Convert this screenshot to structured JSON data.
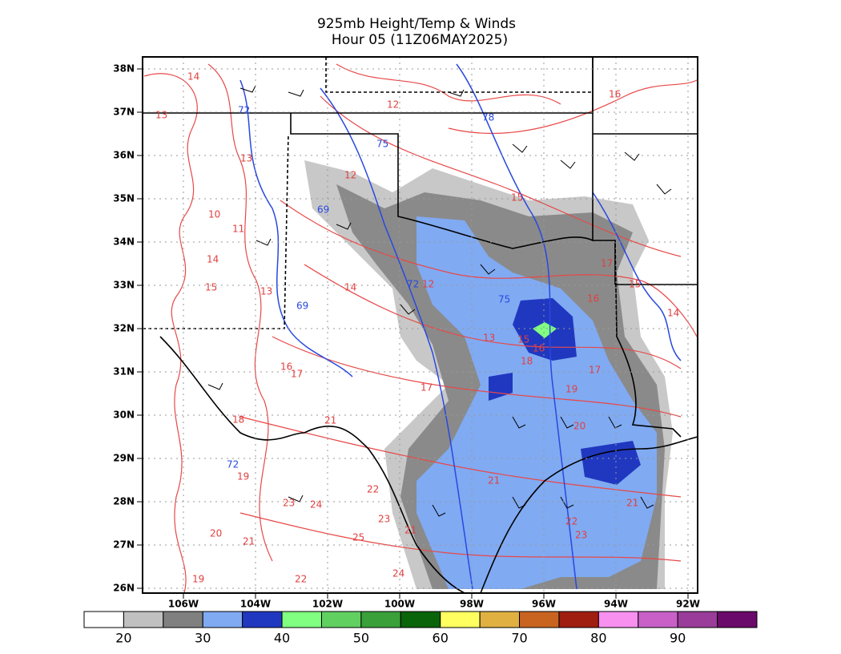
{
  "title": "925mb Height/Temp & Winds",
  "subtitle": "Hour 05 (11Z06MAY2025)",
  "map": {
    "lat_labels": [
      "26N",
      "27N",
      "28N",
      "29N",
      "30N",
      "31N",
      "32N",
      "33N",
      "34N",
      "35N",
      "36N",
      "37N",
      "38N"
    ],
    "lon_labels": [
      "106W",
      "104W",
      "102W",
      "100W",
      "98W",
      "96W",
      "94W",
      "92W"
    ],
    "contour_labels": [
      "14",
      "12",
      "16",
      "13",
      "72",
      "78",
      "75",
      "13",
      "12",
      "10",
      "11",
      "69",
      "15",
      "14",
      "15",
      "13",
      "14",
      "12",
      "72",
      "69",
      "75",
      "16",
      "17",
      "15",
      "14",
      "13",
      "15",
      "16",
      "18",
      "17",
      "19",
      "20",
      "17",
      "16",
      "17",
      "18",
      "21",
      "72",
      "19",
      "21",
      "21",
      "22",
      "23",
      "23",
      "24",
      "22",
      "23",
      "21",
      "25",
      "21",
      "20",
      "22",
      "19",
      "24"
    ]
  },
  "colorbar": {
    "colors": [
      "#ffffff",
      "#c0c0c0",
      "#808080",
      "#80aaf2",
      "#2038c0",
      "#80ff80",
      "#60d060",
      "#3aa03a",
      "#0a640a",
      "#ffff60",
      "#e0b040",
      "#c86420",
      "#a01e10",
      "#f890f0",
      "#c860c8",
      "#9a3c9a",
      "#6a0a6a"
    ],
    "labels": [
      "20",
      "30",
      "40",
      "50",
      "60",
      "70",
      "80",
      "90"
    ]
  }
}
